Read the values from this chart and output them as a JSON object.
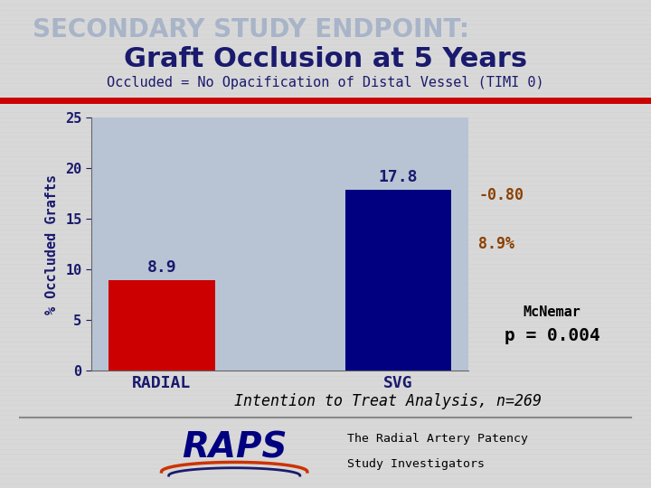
{
  "title_line1": "SECONDARY STUDY ENDPOINT:",
  "title_line2": "Graft Occlusion at 5 Years",
  "subtitle": "Occluded = No Opacification of Distal Vessel (TIMI 0)",
  "categories": [
    "RADIAL",
    "SVG"
  ],
  "values": [
    8.9,
    17.8
  ],
  "bar_colors": [
    "#cc0000",
    "#000080"
  ],
  "bar_value_labels": [
    "8.9",
    "17.8"
  ],
  "ylabel": "% Occluded Grafts",
  "ylim": [
    0,
    25
  ],
  "yticks": [
    0,
    5,
    10,
    15,
    20,
    25
  ],
  "annotation_text1": "McNemar",
  "annotation_text2": "p = 0.004",
  "side_text1": "-0.80",
  "side_text2": "8.9%",
  "bottom_text": "Intention to Treat Analysis, n=269",
  "raps_text1": "The Radial Artery Patency",
  "raps_text2": "Study Investigators",
  "bg_color": "#b8c4d4",
  "outer_bg": "#d8d8d8",
  "stripe_color": "#c8c8c8",
  "title_line1_color": "#a8b4c8",
  "title_line2_color": "#1a1a6e",
  "subtitle_color": "#1a1a6e",
  "red_line_color": "#cc0000",
  "side_text_color": "#8b4000",
  "annotation_label_color": "#000000",
  "annotation_value_color": "#000000",
  "ylabel_color": "#1a1a6e",
  "xtick_color": "#1a1a6e",
  "bar_label_color": "#1a1a6e"
}
